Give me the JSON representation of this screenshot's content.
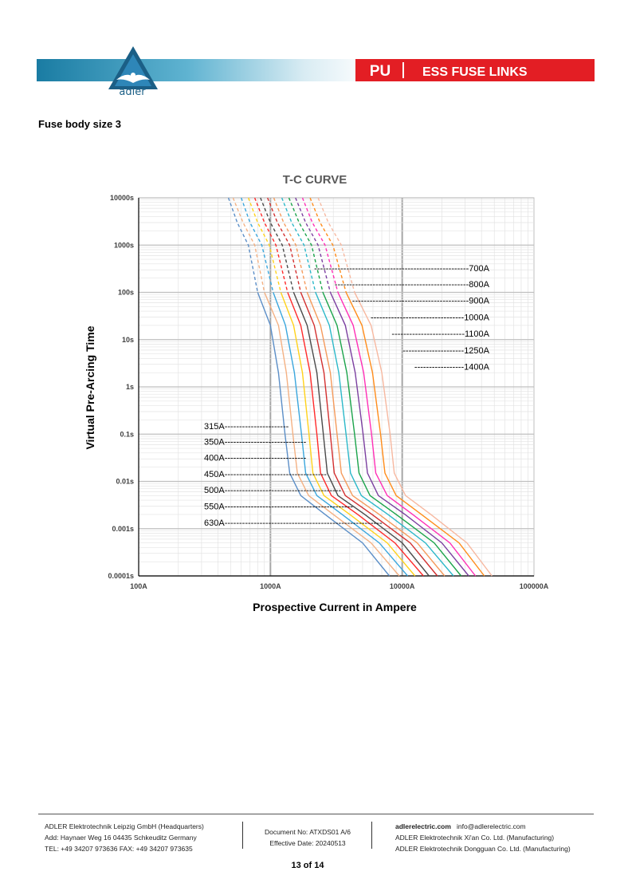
{
  "header": {
    "brand": "adler",
    "product_code": "PU",
    "product_line": "ESS FUSE LINKS",
    "colors": {
      "red_band": "#e31e24",
      "blue_band": "#1a7ca3"
    }
  },
  "section_title": "Fuse body size 3",
  "chart_data": {
    "type": "line",
    "title": "T-C CURVE",
    "xlabel": "Prospective Current in Ampere",
    "ylabel": "Virtual Pre-Arcing Time",
    "x_scale": "log",
    "y_scale": "log",
    "xlim": [
      100,
      100000
    ],
    "ylim": [
      0.0001,
      10000
    ],
    "grid": true,
    "x_ticks": [
      "100A",
      "1000A",
      "10000A",
      "100000A"
    ],
    "y_ticks": [
      "0.0001s",
      "0.001s",
      "0.01s",
      "0.1s",
      "1s",
      "10s",
      "100s",
      "1000s",
      "10000s"
    ],
    "series": [
      {
        "name": "315A",
        "color": "#5b8ec7",
        "points": [
          [
            480,
            10000
          ],
          [
            560,
            3000
          ],
          [
            680,
            1000
          ],
          [
            800,
            100
          ],
          [
            1000,
            20
          ],
          [
            1150,
            2
          ],
          [
            1290,
            0.1
          ],
          [
            1400,
            0.015
          ],
          [
            1700,
            0.005
          ],
          [
            2600,
            0.002
          ],
          [
            5000,
            0.0005
          ],
          [
            8000,
            0.0001
          ]
        ]
      },
      {
        "name": "350A",
        "color": "#f4b183",
        "points": [
          [
            520,
            10000
          ],
          [
            620,
            3000
          ],
          [
            760,
            1000
          ],
          [
            900,
            100
          ],
          [
            1150,
            20
          ],
          [
            1320,
            2
          ],
          [
            1480,
            0.1
          ],
          [
            1600,
            0.015
          ],
          [
            1950,
            0.005
          ],
          [
            3000,
            0.002
          ],
          [
            5800,
            0.0005
          ],
          [
            9500,
            0.0001
          ]
        ]
      },
      {
        "name": "400A",
        "color": "#3aa6dd",
        "points": [
          [
            600,
            10000
          ],
          [
            700,
            3000
          ],
          [
            860,
            1000
          ],
          [
            1050,
            100
          ],
          [
            1300,
            20
          ],
          [
            1520,
            2
          ],
          [
            1720,
            0.1
          ],
          [
            1850,
            0.015
          ],
          [
            2250,
            0.005
          ],
          [
            3500,
            0.002
          ],
          [
            6700,
            0.0005
          ],
          [
            11000,
            0.0001
          ]
        ]
      },
      {
        "name": "450A",
        "color": "#ffd21a",
        "points": [
          [
            680,
            10000
          ],
          [
            800,
            3000
          ],
          [
            980,
            1000
          ],
          [
            1200,
            100
          ],
          [
            1500,
            20
          ],
          [
            1750,
            2
          ],
          [
            1960,
            0.1
          ],
          [
            2100,
            0.015
          ],
          [
            2550,
            0.005
          ],
          [
            4000,
            0.002
          ],
          [
            7700,
            0.0005
          ],
          [
            12500,
            0.0001
          ]
        ]
      },
      {
        "name": "500A",
        "color": "#ff2a2a",
        "points": [
          [
            760,
            10000
          ],
          [
            900,
            3000
          ],
          [
            1100,
            1000
          ],
          [
            1350,
            100
          ],
          [
            1700,
            20
          ],
          [
            2000,
            2
          ],
          [
            2250,
            0.1
          ],
          [
            2400,
            0.015
          ],
          [
            2900,
            0.005
          ],
          [
            4600,
            0.002
          ],
          [
            8800,
            0.0005
          ],
          [
            14500,
            0.0001
          ]
        ]
      },
      {
        "name": "550A",
        "color": "#4a4a4a",
        "points": [
          [
            840,
            10000
          ],
          [
            1000,
            3000
          ],
          [
            1230,
            1000
          ],
          [
            1500,
            100
          ],
          [
            1900,
            20
          ],
          [
            2250,
            2
          ],
          [
            2520,
            0.1
          ],
          [
            2700,
            0.015
          ],
          [
            3250,
            0.005
          ],
          [
            5200,
            0.002
          ],
          [
            10000,
            0.0005
          ],
          [
            16000,
            0.0001
          ]
        ]
      },
      {
        "name": "630A",
        "color": "#d32f2f",
        "points": [
          [
            950,
            10000
          ],
          [
            1130,
            3000
          ],
          [
            1400,
            1000
          ],
          [
            1700,
            100
          ],
          [
            2150,
            20
          ],
          [
            2550,
            2
          ],
          [
            2850,
            0.1
          ],
          [
            3050,
            0.015
          ],
          [
            3700,
            0.005
          ],
          [
            5900,
            0.002
          ],
          [
            11500,
            0.0005
          ],
          [
            18500,
            0.0001
          ]
        ]
      },
      {
        "name": "700A",
        "color": "#f59a5b",
        "points": [
          [
            1060,
            10000
          ],
          [
            1260,
            3000
          ],
          [
            1560,
            1000
          ],
          [
            1900,
            100
          ],
          [
            2400,
            20
          ],
          [
            2850,
            2
          ],
          [
            3200,
            0.1
          ],
          [
            3450,
            0.015
          ],
          [
            4200,
            0.005
          ],
          [
            6700,
            0.002
          ],
          [
            13000,
            0.0005
          ],
          [
            21000,
            0.0001
          ]
        ]
      },
      {
        "name": "800A",
        "color": "#2bb8c9",
        "points": [
          [
            1220,
            10000
          ],
          [
            1450,
            3000
          ],
          [
            1800,
            1000
          ],
          [
            2200,
            100
          ],
          [
            2800,
            20
          ],
          [
            3300,
            2
          ],
          [
            3750,
            0.1
          ],
          [
            4050,
            0.015
          ],
          [
            4900,
            0.005
          ],
          [
            7800,
            0.002
          ],
          [
            15000,
            0.0005
          ],
          [
            24500,
            0.0001
          ]
        ]
      },
      {
        "name": "900A",
        "color": "#1aa34a",
        "points": [
          [
            1380,
            10000
          ],
          [
            1650,
            3000
          ],
          [
            2050,
            1000
          ],
          [
            2500,
            100
          ],
          [
            3200,
            20
          ],
          [
            3800,
            2
          ],
          [
            4350,
            0.1
          ],
          [
            4700,
            0.015
          ],
          [
            5700,
            0.005
          ],
          [
            9000,
            0.002
          ],
          [
            17500,
            0.0005
          ],
          [
            28000,
            0.0001
          ]
        ]
      },
      {
        "name": "1000A",
        "color": "#7b3fa0",
        "points": [
          [
            1550,
            10000
          ],
          [
            1850,
            3000
          ],
          [
            2300,
            1000
          ],
          [
            2850,
            100
          ],
          [
            3700,
            20
          ],
          [
            4400,
            2
          ],
          [
            5050,
            0.1
          ],
          [
            5450,
            0.015
          ],
          [
            6600,
            0.005
          ],
          [
            10500,
            0.002
          ],
          [
            20000,
            0.0005
          ],
          [
            32000,
            0.0001
          ]
        ]
      },
      {
        "name": "1100A",
        "color": "#ff2fb6",
        "points": [
          [
            1750,
            10000
          ],
          [
            2080,
            3000
          ],
          [
            2600,
            1000
          ],
          [
            3250,
            100
          ],
          [
            4250,
            20
          ],
          [
            5100,
            2
          ],
          [
            5850,
            0.1
          ],
          [
            6300,
            0.015
          ],
          [
            7700,
            0.005
          ],
          [
            12000,
            0.002
          ],
          [
            23000,
            0.0005
          ],
          [
            36000,
            0.0001
          ]
        ]
      },
      {
        "name": "1250A",
        "color": "#ff8c1a",
        "points": [
          [
            2000,
            10000
          ],
          [
            2380,
            3000
          ],
          [
            2980,
            1000
          ],
          [
            3750,
            100
          ],
          [
            4950,
            20
          ],
          [
            5950,
            2
          ],
          [
            6850,
            0.1
          ],
          [
            7400,
            0.015
          ],
          [
            9000,
            0.005
          ],
          [
            14000,
            0.002
          ],
          [
            27000,
            0.0005
          ],
          [
            42000,
            0.0001
          ]
        ]
      },
      {
        "name": "1400A",
        "color": "#f7b8a0",
        "points": [
          [
            2300,
            10000
          ],
          [
            2750,
            3000
          ],
          [
            3450,
            1000
          ],
          [
            4350,
            100
          ],
          [
            5800,
            20
          ],
          [
            7000,
            2
          ],
          [
            8100,
            0.1
          ],
          [
            8700,
            0.015
          ],
          [
            10600,
            0.005
          ],
          [
            16500,
            0.002
          ],
          [
            31000,
            0.0005
          ],
          [
            48000,
            0.0001
          ]
        ]
      }
    ],
    "annotations": [
      {
        "label": "315A----------------------",
        "series": "315A"
      },
      {
        "label": "350A----------------------------",
        "series": "350A"
      },
      {
        "label": "400A----------------------------",
        "series": "400A"
      },
      {
        "label": "450A-----------------------------------",
        "series": "450A"
      },
      {
        "label": "500A----------------------------------------",
        "series": "500A"
      },
      {
        "label": "550A--------------------------------------------",
        "series": "550A"
      },
      {
        "label": "630A------------------------------------------------------",
        "series": "630A"
      },
      {
        "label": "-----------------------------------------------------700A",
        "series": "700A"
      },
      {
        "label": "----------------------------------------------800A",
        "series": "800A"
      },
      {
        "label": "----------------------------------------900A",
        "series": "900A"
      },
      {
        "label": "--------------------------------1000A",
        "series": "1000A"
      },
      {
        "label": "-------------------------1100A",
        "series": "1100A"
      },
      {
        "label": "---------------------1250A",
        "series": "1250A"
      },
      {
        "label": "-----------------1400A",
        "series": "1400A"
      }
    ]
  },
  "footer": {
    "company_hq": "ADLER Elektrotechnik Leipzig GmbH (Headquarters)",
    "address": "Add:   Haynaer Weg 16 04435 Schkeuditz Germany",
    "phone": "TEL: +49 34207 973636    FAX: +49 34207 973635",
    "doc_no": "Document No: ATXDS01 A/6",
    "effective_date": "Effective Date: 20240513",
    "website": "adlerelectric.com",
    "email": "info@adlerelectric.com",
    "site_xian": "ADLER Elektrotechnik Xi'an Co. Ltd. (Manufacturing)",
    "site_dongguan": "ADLER Elektrotechnik Dongguan Co. Ltd. (Manufacturing)",
    "page": "13 of 14"
  }
}
